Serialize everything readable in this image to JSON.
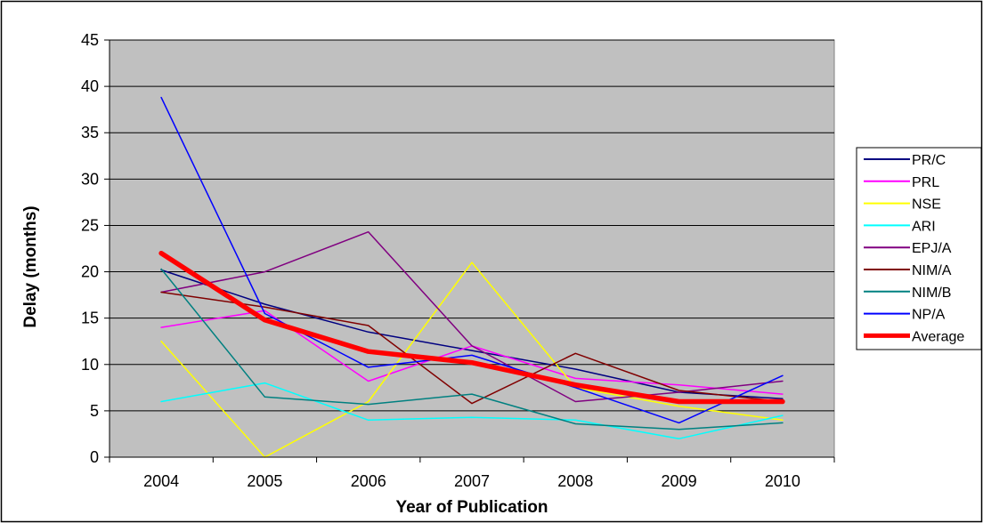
{
  "chart_data": {
    "type": "line",
    "title": "",
    "xlabel": "Year of Publication",
    "ylabel": "Delay (months)",
    "categories": [
      "2004",
      "2005",
      "2006",
      "2007",
      "2008",
      "2009",
      "2010"
    ],
    "ylim": [
      0,
      45
    ],
    "yticks": [
      0,
      5,
      10,
      15,
      20,
      25,
      30,
      35,
      40,
      45
    ],
    "grid": true,
    "legend_position": "right",
    "plot_background": "#c0c0c0",
    "series": [
      {
        "name": "PR/C",
        "color": "#000080",
        "width": 1.5,
        "values": [
          20.2,
          16.5,
          13.5,
          11.5,
          9.5,
          7.0,
          6.3
        ]
      },
      {
        "name": "PRL",
        "color": "#ff00ff",
        "width": 1.5,
        "values": [
          14.0,
          15.8,
          8.2,
          12.0,
          8.5,
          7.8,
          6.8
        ]
      },
      {
        "name": "NSE",
        "color": "#ffff00",
        "width": 1.5,
        "values": [
          12.5,
          0.0,
          6.0,
          21.0,
          7.5,
          5.5,
          4.0
        ]
      },
      {
        "name": "ARI",
        "color": "#00ffff",
        "width": 1.5,
        "values": [
          6.0,
          8.0,
          4.0,
          4.3,
          4.0,
          2.0,
          4.5
        ]
      },
      {
        "name": "EPJ/A",
        "color": "#800080",
        "width": 1.5,
        "values": [
          17.8,
          20.0,
          24.3,
          12.0,
          6.0,
          7.0,
          8.2
        ]
      },
      {
        "name": "NIM/A",
        "color": "#800000",
        "width": 1.5,
        "values": [
          17.8,
          16.2,
          14.2,
          5.8,
          11.2,
          7.2,
          6.0
        ]
      },
      {
        "name": "NIM/B",
        "color": "#008080",
        "width": 1.5,
        "values": [
          20.3,
          6.5,
          5.7,
          6.8,
          3.6,
          3.0,
          3.7
        ]
      },
      {
        "name": "NP/A",
        "color": "#0000ff",
        "width": 1.5,
        "values": [
          38.8,
          15.5,
          9.7,
          11.0,
          7.5,
          3.7,
          8.8
        ]
      },
      {
        "name": "Average",
        "color": "#ff0000",
        "width": 5.5,
        "values": [
          22.0,
          14.8,
          11.4,
          10.2,
          7.8,
          6.0,
          6.0
        ]
      }
    ]
  }
}
